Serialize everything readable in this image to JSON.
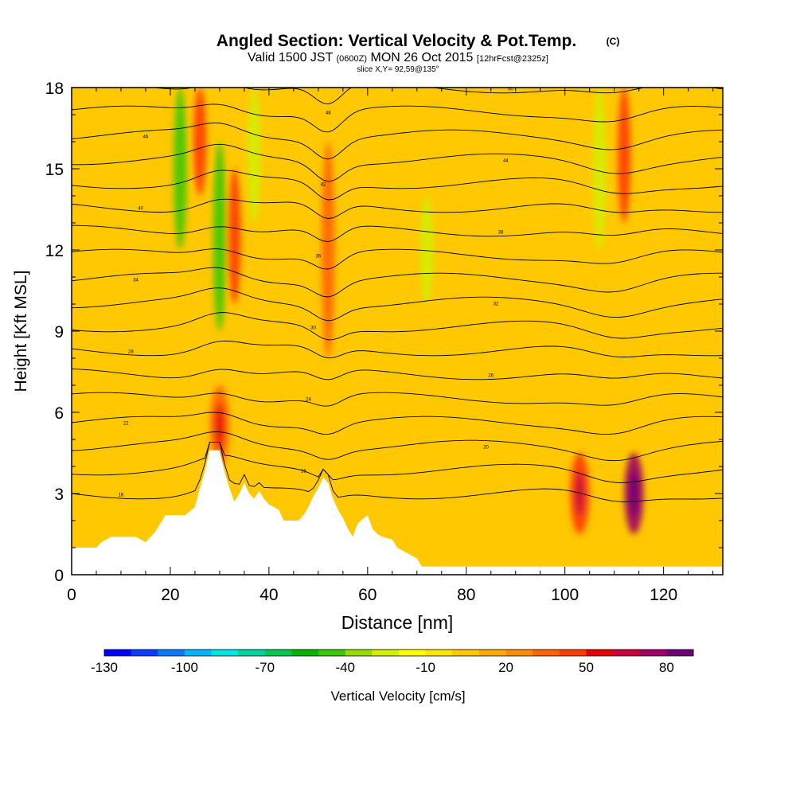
{
  "chart_data": {
    "type": "heatmap",
    "title": "Angled Section: Vertical Velocity & Pot.Temp.",
    "title_unit": "(C)",
    "subtitle": {
      "prefix": "Valid 1500 JST",
      "utc": "(0600Z)",
      "date": "MON 26 Oct 2015",
      "forecast": "[12hrFcst@2325z]"
    },
    "slice_label": "slice X,Y= 92,59@135°",
    "xlabel": "Distance [nm]",
    "ylabel": "Height [Kft MSL]",
    "xlim": [
      0,
      132
    ],
    "ylim": [
      0,
      18
    ],
    "x_ticks": [
      0,
      20,
      40,
      60,
      80,
      100,
      120
    ],
    "y_ticks": [
      0,
      3,
      6,
      9,
      12,
      15,
      18
    ],
    "grid": false,
    "colorbar": {
      "label": "Vertical Velocity [cm/s]",
      "min": -130,
      "max": 90,
      "step": 10,
      "tick_labels": [
        -130,
        -100,
        -70,
        -40,
        -10,
        20,
        50,
        80
      ],
      "colors": [
        "#0000ff",
        "#0a3cff",
        "#0a78ff",
        "#00b4ff",
        "#00e6e6",
        "#00d2a0",
        "#00c850",
        "#00b400",
        "#3cc800",
        "#96dc00",
        "#d2f000",
        "#ffff00",
        "#ffe600",
        "#ffc800",
        "#ffaa00",
        "#ff8c00",
        "#ff6400",
        "#ff3c00",
        "#e60000",
        "#c8003c",
        "#a00064",
        "#6e0078"
      ]
    },
    "terrain_kft": [
      [
        0,
        1.0
      ],
      [
        5,
        1.0
      ],
      [
        6,
        1.2
      ],
      [
        8,
        1.4
      ],
      [
        13,
        1.4
      ],
      [
        14,
        1.3
      ],
      [
        15,
        1.2
      ],
      [
        17,
        1.6
      ],
      [
        19,
        2.2
      ],
      [
        23,
        2.2
      ],
      [
        25,
        2.5
      ],
      [
        26,
        3.2
      ],
      [
        27,
        3.8
      ],
      [
        28,
        4.6
      ],
      [
        30,
        4.6
      ],
      [
        31,
        3.8
      ],
      [
        32,
        3.2
      ],
      [
        33,
        2.7
      ],
      [
        34,
        3.0
      ],
      [
        35,
        3.4
      ],
      [
        36,
        3.0
      ],
      [
        37,
        2.8
      ],
      [
        38,
        3.1
      ],
      [
        39,
        2.8
      ],
      [
        40,
        2.6
      ],
      [
        42,
        2.4
      ],
      [
        43,
        2.0
      ],
      [
        46,
        2.0
      ],
      [
        47,
        2.2
      ],
      [
        48,
        2.5
      ],
      [
        49,
        2.9
      ],
      [
        50,
        3.2
      ],
      [
        51,
        3.6
      ],
      [
        52,
        3.4
      ],
      [
        53,
        2.8
      ],
      [
        54,
        2.4
      ],
      [
        55,
        2.1
      ],
      [
        56,
        1.7
      ],
      [
        57,
        1.4
      ],
      [
        58,
        1.9
      ],
      [
        60,
        2.2
      ],
      [
        61,
        1.7
      ],
      [
        62,
        1.5
      ],
      [
        63,
        1.4
      ],
      [
        65,
        1.3
      ],
      [
        66,
        1.0
      ],
      [
        68,
        0.8
      ],
      [
        70,
        0.6
      ],
      [
        71,
        0.3
      ],
      [
        132,
        0.3
      ]
    ],
    "series": [
      {
        "name": "Vertical Velocity",
        "units": "cm/s",
        "x_range": [
          0,
          132
        ],
        "y_range_kft": [
          0,
          18
        ],
        "value_range": [
          -50,
          70
        ],
        "background_value": 0
      }
    ],
    "features": [
      {
        "kind": "vertical band",
        "x": 22,
        "y_range": [
          12,
          18
        ],
        "value": -50
      },
      {
        "kind": "vertical band",
        "x": 26,
        "y_range": [
          14,
          18
        ],
        "value": 40
      },
      {
        "kind": "vertical band",
        "x": 30,
        "y_range": [
          9,
          16
        ],
        "value": -45
      },
      {
        "kind": "vertical band",
        "x": 33,
        "y_range": [
          10,
          15
        ],
        "value": 40
      },
      {
        "kind": "vertical band",
        "x": 37,
        "y_range": [
          13,
          18
        ],
        "value": -30
      },
      {
        "kind": "vertical band",
        "x": 52,
        "y_range": [
          8,
          16
        ],
        "value": 30
      },
      {
        "kind": "vertical band",
        "x": 72,
        "y_range": [
          10,
          14
        ],
        "value": -30
      },
      {
        "kind": "vertical band",
        "x": 107,
        "y_range": [
          12,
          18
        ],
        "value": -30
      },
      {
        "kind": "vertical band",
        "x": 112,
        "y_range": [
          13,
          18
        ],
        "value": 40
      },
      {
        "kind": "updraft core",
        "x": 30,
        "y_range": [
          4,
          7
        ],
        "value": 30
      },
      {
        "kind": "updraft core",
        "x": 103,
        "y_range": [
          1.5,
          4.5
        ],
        "value": 40
      },
      {
        "kind": "updraft core",
        "x": 114,
        "y_range": [
          1.5,
          4.5
        ],
        "value": 70
      }
    ],
    "theta_contours": {
      "label": "Pot.Temp.",
      "units": "C",
      "interval": 2,
      "levels": [
        16,
        18,
        20,
        22,
        24,
        26,
        28,
        30,
        32,
        34,
        36,
        38,
        40,
        42,
        44,
        46,
        48,
        50
      ]
    }
  }
}
